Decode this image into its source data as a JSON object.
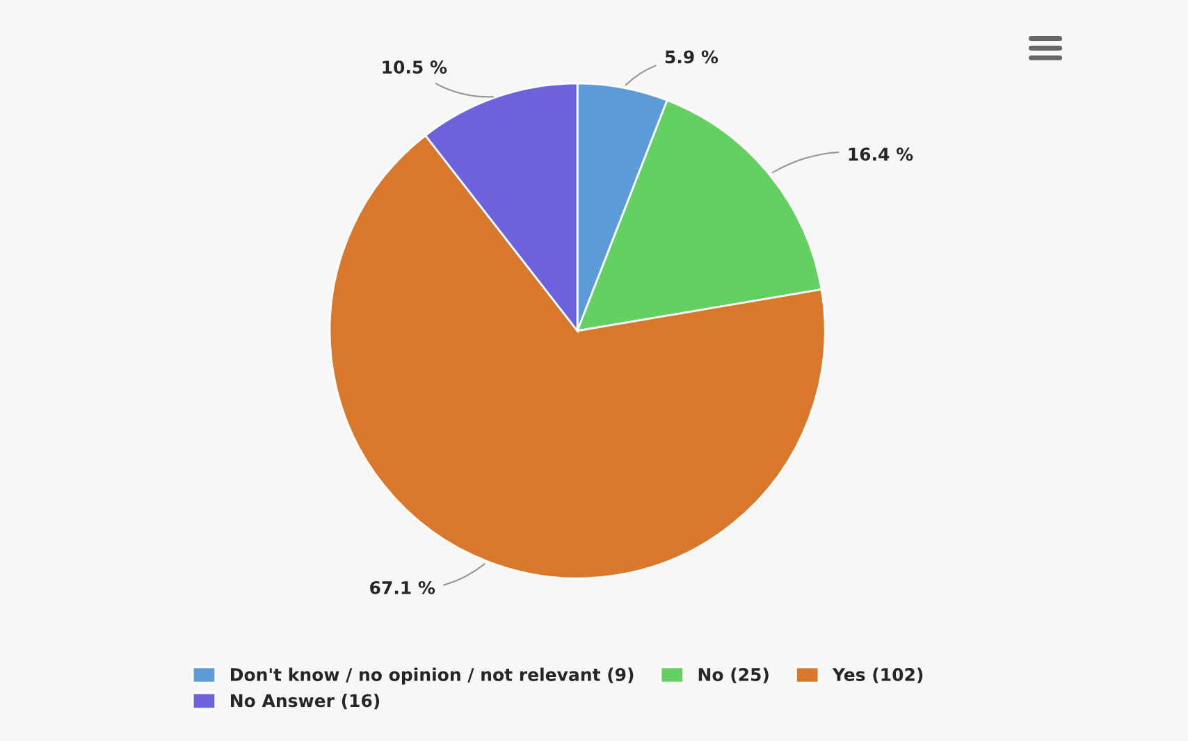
{
  "chart_data": {
    "type": "pie",
    "categories": [
      "Don't know / no opinion / not relevant (9)",
      "No (25)",
      "Yes (102)",
      "No Answer (16)"
    ],
    "values": [
      5.9,
      16.4,
      67.1,
      10.5
    ],
    "colors": [
      "#5b9bd8",
      "#62d162",
      "#d9782d",
      "#6b62dc"
    ],
    "value_labels": [
      "5.9 %",
      "16.4 %",
      "67.1 %",
      "10.5 %"
    ],
    "legend": "bottom"
  }
}
